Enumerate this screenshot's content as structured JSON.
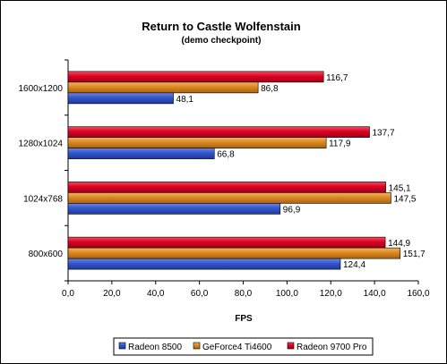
{
  "chart_data": {
    "type": "bar",
    "orientation": "horizontal",
    "title": "Return to Castle Wolfenstain",
    "subtitle": "(demo checkpoint)",
    "xlabel": "FPS",
    "ylabel": "",
    "xlim": [
      0,
      160
    ],
    "xticks": [
      "0,0",
      "20,0",
      "40,0",
      "60,0",
      "80,0",
      "100,0",
      "120,0",
      "140,0",
      "160,0"
    ],
    "categories": [
      "1600x1200",
      "1280x1024",
      "1024x768",
      "800x600"
    ],
    "series": [
      {
        "name": "Radeon 8500",
        "color": "#3355cc",
        "values": [
          48.1,
          66.8,
          96.9,
          124.4
        ],
        "labels": [
          "48,1",
          "66,8",
          "96,9",
          "124,4"
        ]
      },
      {
        "name": "GeForce4 Ti4600",
        "color": "#dd8822",
        "values": [
          86.8,
          117.9,
          147.5,
          151.7
        ],
        "labels": [
          "86,8",
          "117,9",
          "147,5",
          "151,7"
        ]
      },
      {
        "name": "Radeon 9700 Pro",
        "color": "#dd0022",
        "values": [
          116.7,
          137.7,
          145.1,
          144.9
        ],
        "labels": [
          "116,7",
          "137,7",
          "145,1",
          "144,9"
        ]
      }
    ],
    "grid": false,
    "legend_position": "bottom"
  }
}
